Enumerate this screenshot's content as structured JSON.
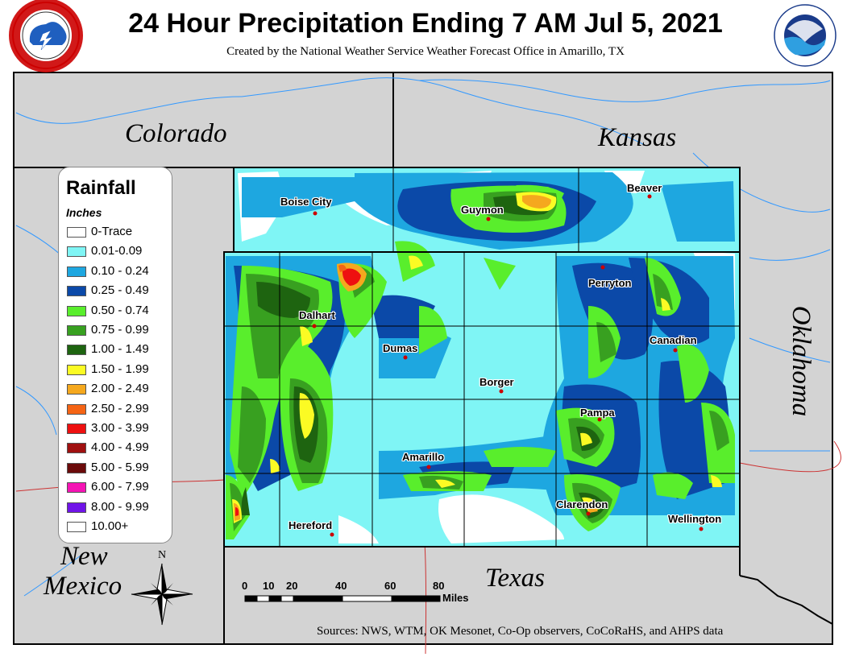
{
  "header": {
    "title": "24 Hour Precipitation Ending 7 AM Jul 5, 2021",
    "subtitle": "Created by the National Weather Service Weather Forecast Office in Amarillo, TX"
  },
  "logos": {
    "nws": "NATIONAL WEATHER SERVICE",
    "noaa": "NOAA"
  },
  "states": {
    "colorado": "Colorado",
    "kansas": "Kansas",
    "oklahoma": "Oklahoma",
    "new_mexico_1": "New",
    "new_mexico_2": "Mexico",
    "texas": "Texas"
  },
  "cities": {
    "boise_city": "Boise City",
    "guymon": "Guymon",
    "beaver": "Beaver",
    "perryton": "Perryton",
    "dalhart": "Dalhart",
    "dumas": "Dumas",
    "canadian": "Canadian",
    "borger": "Borger",
    "pampa": "Pampa",
    "amarillo": "Amarillo",
    "clarendon": "Clarendon",
    "hereford": "Hereford",
    "wellington": "Wellington"
  },
  "legend": {
    "title": "Rainfall",
    "units": "Inches",
    "items": [
      {
        "label": "0-Trace",
        "color": "#ffffff"
      },
      {
        "label": "0.01-0.09",
        "color": "#7ff5f5"
      },
      {
        "label": "0.10 - 0.24",
        "color": "#1ea7e0"
      },
      {
        "label": "0.25 - 0.49",
        "color": "#0b49a8"
      },
      {
        "label": "0.50 - 0.74",
        "color": "#59ee2c"
      },
      {
        "label": "0.75 - 0.99",
        "color": "#38a020"
      },
      {
        "label": "1.00 - 1.49",
        "color": "#1e6410"
      },
      {
        "label": "1.50 - 1.99",
        "color": "#fbfb24"
      },
      {
        "label": "2.00 - 2.49",
        "color": "#f5a81e"
      },
      {
        "label": "2.50 - 2.99",
        "color": "#f56414"
      },
      {
        "label": "3.00 - 3.99",
        "color": "#ee1010"
      },
      {
        "label": "4.00 - 4.99",
        "color": "#a01010"
      },
      {
        "label": "5.00 - 5.99",
        "color": "#6b0a0a"
      },
      {
        "label": "6.00 - 7.99",
        "color": "#f514b4"
      },
      {
        "label": "8.00 - 9.99",
        "color": "#7014e8"
      },
      {
        "label": "10.00+",
        "color": "#ffffff"
      }
    ]
  },
  "scale_bar": {
    "ticks": [
      "0",
      "10",
      "20",
      "40",
      "60",
      "80"
    ],
    "unit": "Miles"
  },
  "compass": "N",
  "source": "Sources:  NWS, WTM, OK Mesonet, Co-Op observers, CoCoRaHS, and AHPS data",
  "colors": {
    "surrounding": "#d3d3d3",
    "rivers": "#3399ff",
    "roads": "#cc3333",
    "city_dot": "#cc0000"
  }
}
